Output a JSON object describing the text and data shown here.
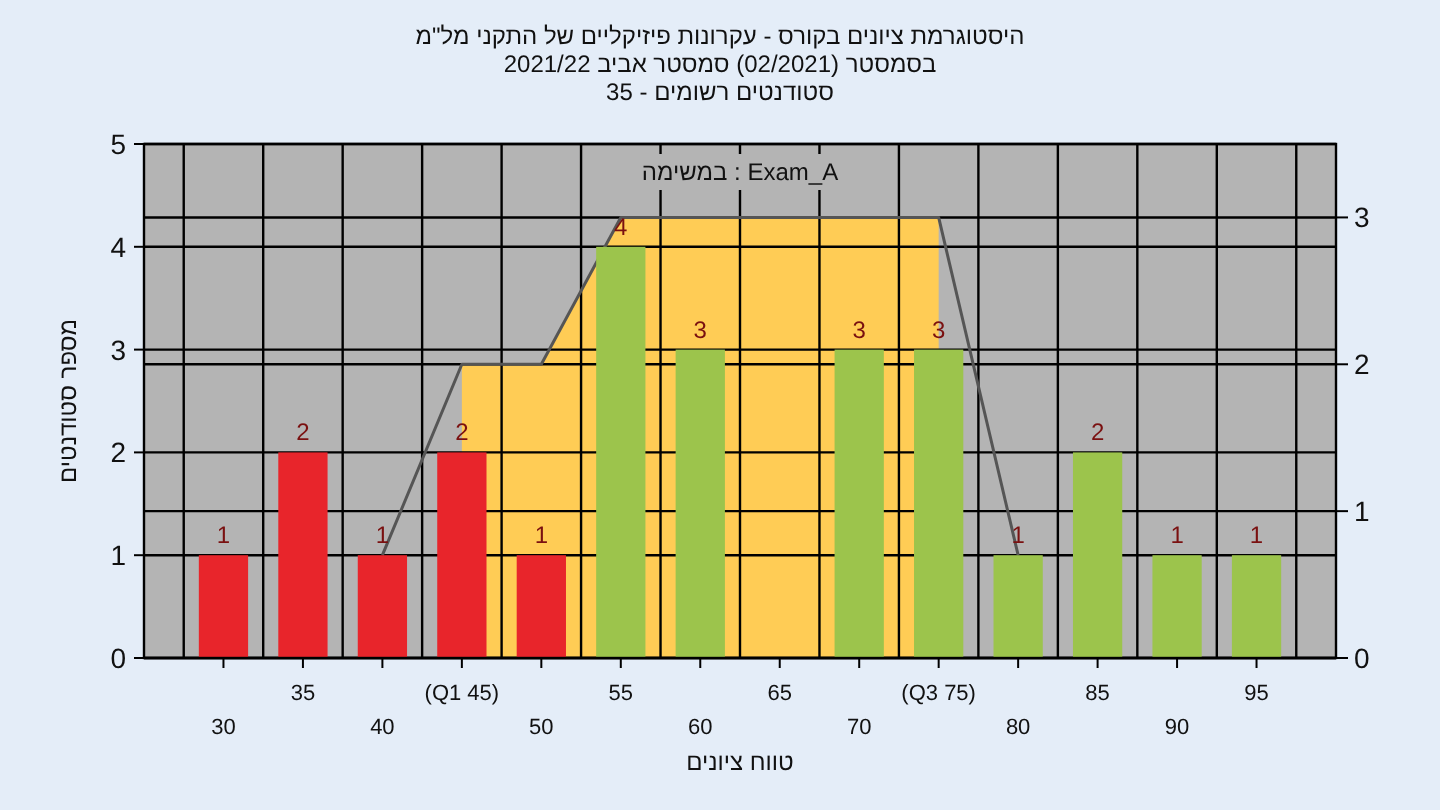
{
  "chart_data": {
    "type": "bar",
    "title": "היסטוגרמת ציונים בקורס - עקרונות פיזיקליים של התקני מל\"מ",
    "subtitle": "בסמסטר (02/2021) סמסטר אביב 2021/22",
    "annotations": [
      "סטודנטים רשומים - 35",
      "במשימה : Exam_A"
    ],
    "xlabel": "טווח ציונים",
    "ylabel": "מספר סטודנטים",
    "categories": [
      "30",
      "35",
      "40",
      "(Q1 45)",
      "50",
      "55",
      "60",
      "65",
      "70",
      "(Q3 75)",
      "80",
      "85",
      "90",
      "95"
    ],
    "series": [
      {
        "type": "area",
        "axis": "y2",
        "color": "#ffcc55",
        "values": [
          null,
          null,
          null,
          2,
          2,
          3,
          3,
          3,
          3,
          3,
          null,
          null,
          null,
          null
        ]
      },
      {
        "type": "line",
        "axis": "y2",
        "color": "#555555",
        "values": [
          null,
          null,
          0.7,
          2,
          2,
          3,
          3,
          3,
          3,
          3,
          0.7,
          null,
          null,
          null
        ]
      },
      {
        "colors": [
          "#e8252b",
          "#e8252b",
          "#e8252b",
          "#e8252b",
          "#e8252b",
          "#9cc44c",
          "#9cc44c",
          "#9cc44c",
          "#9cc44c",
          "#9cc44c",
          "#9cc44c",
          "#9cc44c",
          "#9cc44c",
          "#9cc44c"
        ],
        "values": [
          1,
          2,
          1,
          2,
          1,
          4,
          3,
          0,
          3,
          3,
          1,
          2,
          1,
          1
        ],
        "value_labels": [
          "1",
          "2",
          "1",
          "2",
          "1",
          "4",
          "3",
          null,
          "3",
          "3",
          "1",
          "2",
          "1",
          "1"
        ]
      }
    ],
    "ylim": [
      0,
      5
    ],
    "yticks": [
      0,
      1,
      2,
      3,
      4,
      5
    ],
    "y2lim": [
      0,
      3.5
    ],
    "y2ticks": [
      0,
      1,
      2,
      3
    ],
    "grid": true
  }
}
